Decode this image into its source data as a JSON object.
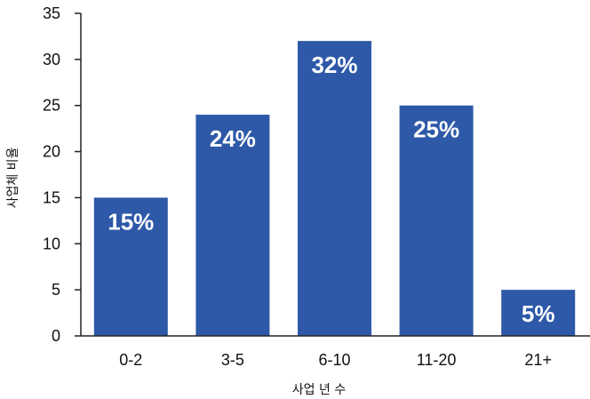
{
  "chart_data": {
    "type": "bar",
    "categories": [
      "0-2",
      "3-5",
      "6-10",
      "11-20",
      "21+"
    ],
    "values": [
      15,
      24,
      32,
      25,
      5
    ],
    "data_labels": [
      "15%",
      "24%",
      "32%",
      "25%",
      "5%"
    ],
    "xlabel": "사업 년 수",
    "ylabel": "사업체 비율",
    "ylim": [
      0,
      35
    ],
    "yticks": [
      0,
      5,
      10,
      15,
      20,
      25,
      30,
      35
    ],
    "grid": false,
    "bar_color": "#2E59A8"
  }
}
